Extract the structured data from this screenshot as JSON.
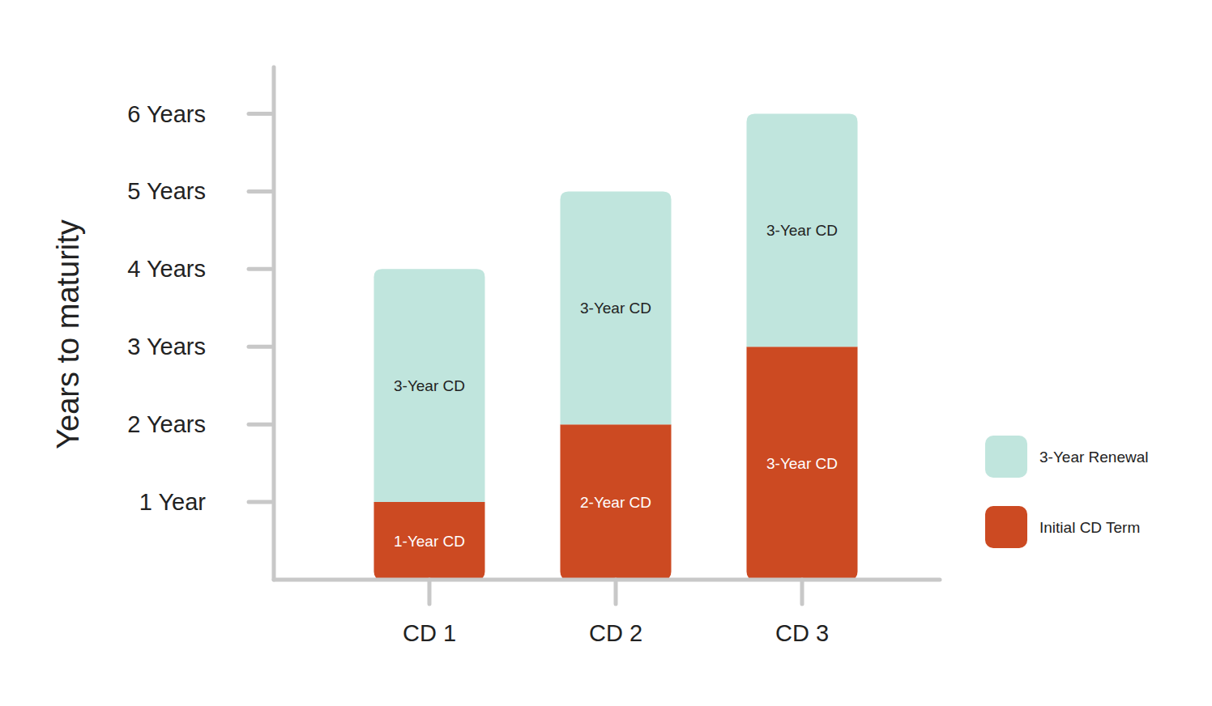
{
  "chart_data": {
    "type": "bar",
    "y_label": "Years to maturity",
    "categories": [
      "CD 1",
      "CD 2",
      "CD 3"
    ],
    "series": [
      {
        "name": "Initial CD Term",
        "color": "#cc4a22",
        "values": [
          1,
          2,
          3
        ],
        "value_labels": [
          "1-Year CD",
          "2-Year CD",
          "3-Year CD"
        ]
      },
      {
        "name": "3-Year Renewal",
        "color": "#c0e5dd",
        "values": [
          3,
          3,
          3
        ],
        "value_labels": [
          "3-Year CD",
          "3-Year CD",
          "3-Year CD"
        ]
      }
    ],
    "ylim": [
      0,
      6.6
    ],
    "yticks": [
      {
        "value": 1,
        "label": "1 Year"
      },
      {
        "value": 2,
        "label": "2 Years"
      },
      {
        "value": 3,
        "label": "3 Years"
      },
      {
        "value": 4,
        "label": "4 Years"
      },
      {
        "value": 5,
        "label": "5 Years"
      },
      {
        "value": 6,
        "label": "6 Years"
      }
    ],
    "stacked": true,
    "data_labels": true,
    "legend": "right",
    "grid": false
  }
}
